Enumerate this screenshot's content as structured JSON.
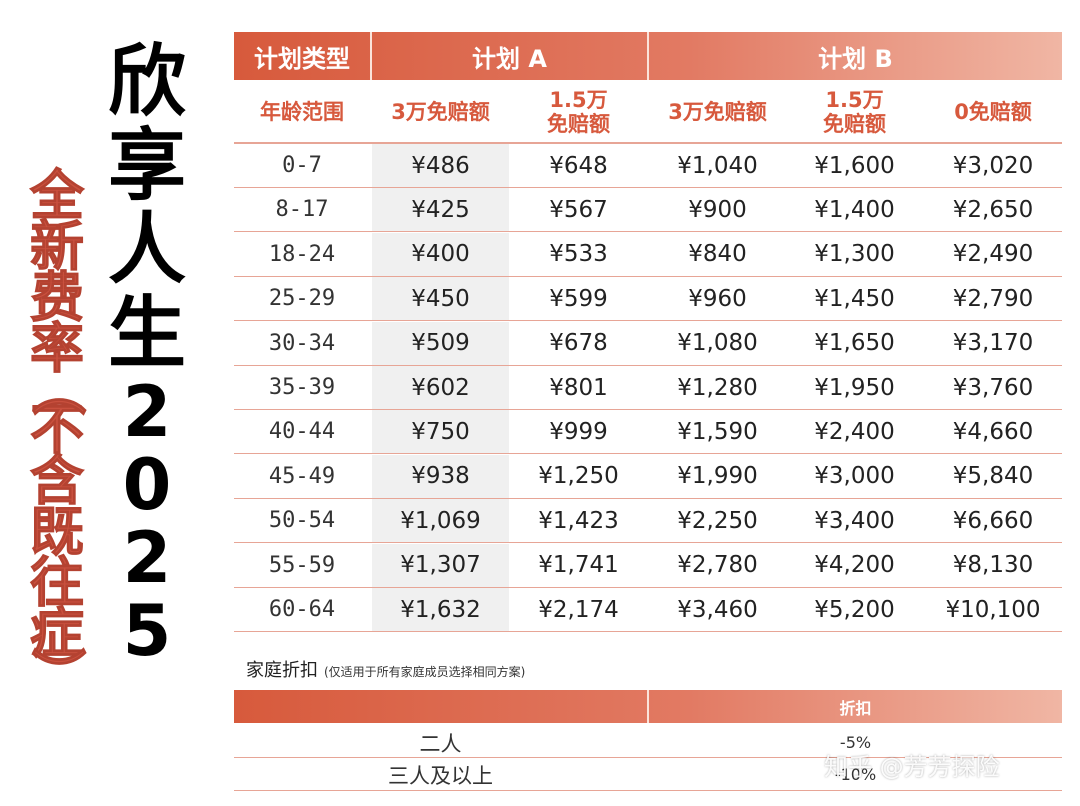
{
  "title_black": [
    "欣",
    "享",
    "人",
    "生",
    "2",
    "0",
    "2",
    "5"
  ],
  "title_red": [
    "全",
    "新",
    "费",
    "率",
    "（",
    "不",
    "含",
    "既",
    "往",
    "症",
    "）"
  ],
  "table": {
    "plan_type_label": "计划类型",
    "plan_a_label": "计划 A",
    "plan_b_label": "计划 B",
    "age_range_label": "年龄范围",
    "columns": [
      "3万免赔额",
      "1.5万\n免赔额",
      "3万免赔额",
      "1.5万\n免赔额",
      "0免赔额"
    ],
    "rows": [
      {
        "age": "0-7",
        "values": [
          "¥486",
          "¥648",
          "¥1,040",
          "¥1,600",
          "¥3,020"
        ]
      },
      {
        "age": "8-17",
        "values": [
          "¥425",
          "¥567",
          "¥900",
          "¥1,400",
          "¥2,650"
        ]
      },
      {
        "age": "18-24",
        "values": [
          "¥400",
          "¥533",
          "¥840",
          "¥1,300",
          "¥2,490"
        ]
      },
      {
        "age": "25-29",
        "values": [
          "¥450",
          "¥599",
          "¥960",
          "¥1,450",
          "¥2,790"
        ]
      },
      {
        "age": "30-34",
        "values": [
          "¥509",
          "¥678",
          "¥1,080",
          "¥1,650",
          "¥3,170"
        ]
      },
      {
        "age": "35-39",
        "values": [
          "¥602",
          "¥801",
          "¥1,280",
          "¥1,950",
          "¥3,760"
        ]
      },
      {
        "age": "40-44",
        "values": [
          "¥750",
          "¥999",
          "¥1,590",
          "¥2,400",
          "¥4,660"
        ]
      },
      {
        "age": "45-49",
        "values": [
          "¥938",
          "¥1,250",
          "¥1,990",
          "¥3,000",
          "¥5,840"
        ]
      },
      {
        "age": "50-54",
        "values": [
          "¥1,069",
          "¥1,423",
          "¥2,250",
          "¥3,400",
          "¥6,660"
        ]
      },
      {
        "age": "55-59",
        "values": [
          "¥1,307",
          "¥1,741",
          "¥2,780",
          "¥4,200",
          "¥8,130"
        ]
      },
      {
        "age": "60-64",
        "values": [
          "¥1,632",
          "¥2,174",
          "¥3,460",
          "¥5,200",
          "¥10,100"
        ]
      }
    ]
  },
  "family": {
    "title": "家庭折扣",
    "note": "(仅适用于所有家庭成员选择相同方案)",
    "discount_header": "折扣",
    "rows": [
      {
        "label": "二人",
        "discount": "-5%"
      },
      {
        "label": "三人及以上",
        "discount": "-10%"
      }
    ]
  },
  "watermark": "知乎 @芳芳探险"
}
